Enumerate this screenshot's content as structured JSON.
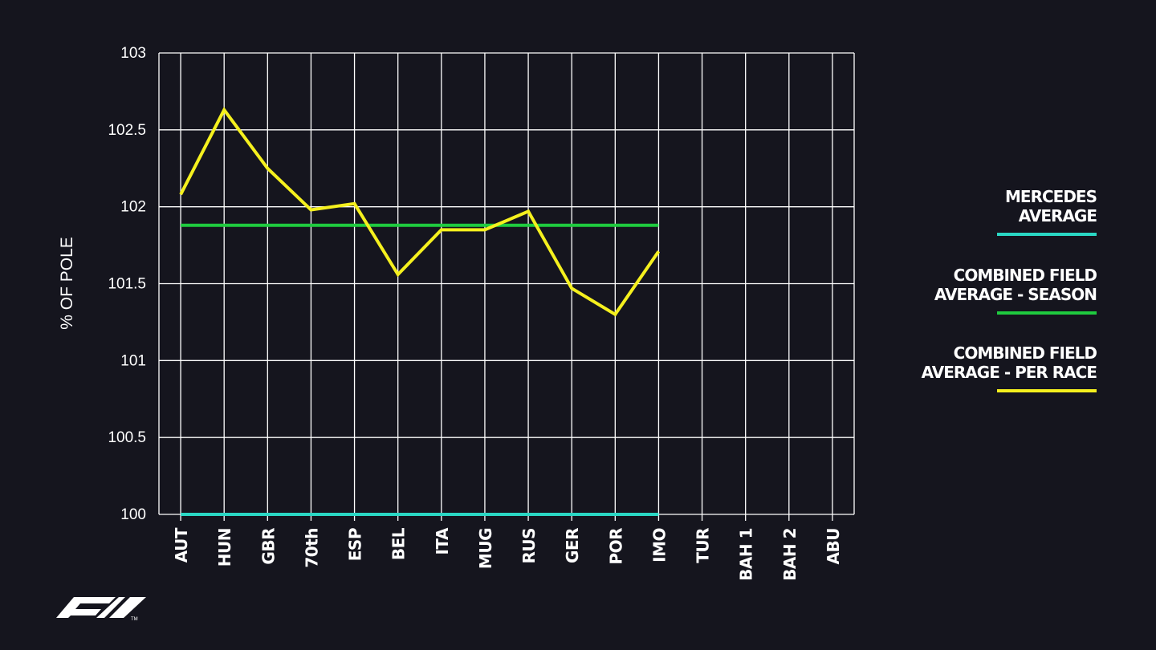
{
  "chart_data": {
    "type": "line",
    "ylabel": "% OF POLE",
    "xlabel": "",
    "ylim": [
      100,
      103
    ],
    "yticks": [
      "100",
      "100.5",
      "101",
      "101.5",
      "102",
      "102.5",
      "103"
    ],
    "categories": [
      "AUT",
      "HUN",
      "GBR",
      "70th",
      "ESP",
      "BEL",
      "ITA",
      "MUG",
      "RUS",
      "GER",
      "POR",
      "IMO",
      "TUR",
      "BAH 1",
      "BAH 2",
      "ABU"
    ],
    "grid": true,
    "legend_position": "right",
    "series": [
      {
        "name": "MERCEDES\nAVERAGE",
        "color": "#2ad7c4",
        "values": [
          100,
          100,
          100,
          100,
          100,
          100,
          100,
          100,
          100,
          100,
          100,
          100,
          null,
          null,
          null,
          null
        ]
      },
      {
        "name": "COMBINED FIELD\nAVERAGE - SEASON",
        "color": "#1fcb3f",
        "values": [
          101.88,
          101.88,
          101.88,
          101.88,
          101.88,
          101.88,
          101.88,
          101.88,
          101.88,
          101.88,
          101.88,
          101.88,
          null,
          null,
          null,
          null
        ]
      },
      {
        "name": "COMBINED FIELD\nAVERAGE - PER RACE",
        "color": "#f5f01e",
        "values": [
          102.08,
          102.63,
          102.25,
          101.98,
          102.02,
          101.56,
          101.85,
          101.85,
          101.97,
          101.47,
          101.3,
          101.71,
          null,
          null,
          null,
          null
        ]
      }
    ]
  },
  "logo": {
    "text": "F1",
    "icon": "f1-logo-icon"
  }
}
